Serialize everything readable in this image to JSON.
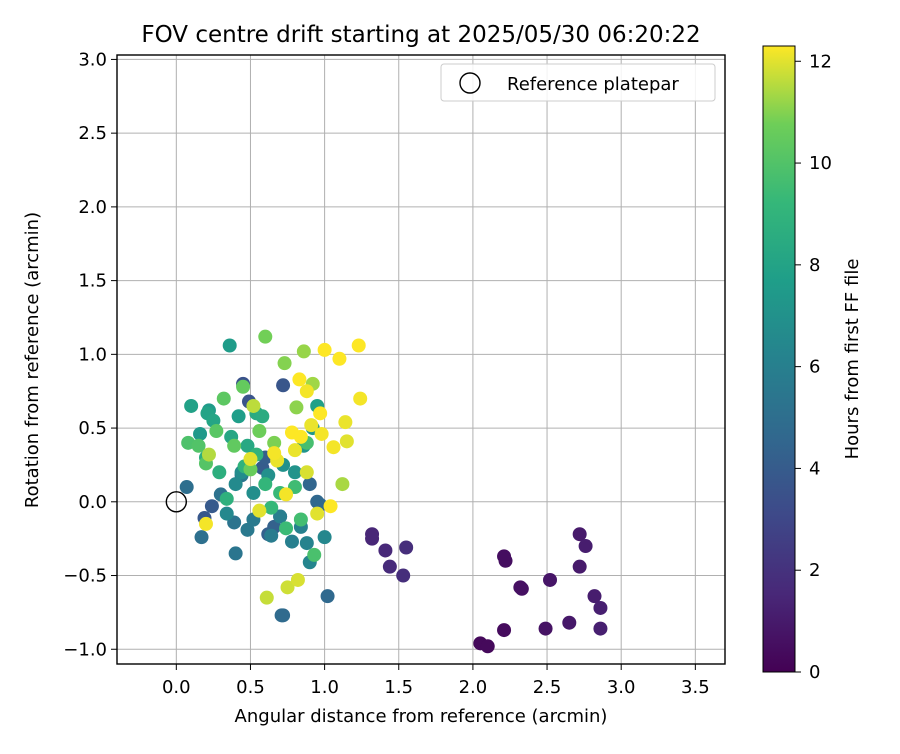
{
  "chart_data": {
    "type": "scatter",
    "title": "FOV centre drift starting at 2025/05/30 06:20:22",
    "xlabel": "Angular distance from reference (arcmin)",
    "ylabel": "Rotation from reference (arcmin)",
    "xlim": [
      -0.4,
      3.7
    ],
    "ylim": [
      -1.1,
      3.03
    ],
    "xticks": [
      "0.0",
      "0.5",
      "1.0",
      "1.5",
      "2.0",
      "2.5",
      "3.0",
      "3.5"
    ],
    "yticks": [
      "−1.0",
      "−0.5",
      "0.0",
      "0.5",
      "1.0",
      "1.5",
      "2.0",
      "2.5",
      "3.0"
    ],
    "grid": true,
    "legend": {
      "position": "top-right",
      "entries": [
        "Reference platepar"
      ]
    },
    "reference_point": {
      "x": 0.0,
      "y": 0.0,
      "label": "Reference platepar"
    },
    "colorbar": {
      "label": "Hours from first FF file",
      "min": 0,
      "max": 12.3,
      "ticks": [
        "0",
        "2",
        "4",
        "6",
        "8",
        "10",
        "12"
      ],
      "colormap": "viridis"
    },
    "points_columns": [
      "x",
      "y",
      "hours"
    ],
    "points": [
      [
        2.05,
        -0.96,
        0.3
      ],
      [
        2.1,
        -0.98,
        0.3
      ],
      [
        2.21,
        -0.87,
        0.4
      ],
      [
        2.21,
        -0.37,
        0.5
      ],
      [
        2.22,
        -0.4,
        0.5
      ],
      [
        2.32,
        -0.58,
        0.6
      ],
      [
        2.33,
        -0.59,
        0.6
      ],
      [
        2.49,
        -0.86,
        0.7
      ],
      [
        2.52,
        -0.53,
        0.8
      ],
      [
        2.65,
        -0.82,
        0.9
      ],
      [
        2.72,
        -0.22,
        1.0
      ],
      [
        2.72,
        -0.44,
        1.0
      ],
      [
        2.76,
        -0.3,
        1.1
      ],
      [
        2.82,
        -0.64,
        1.1
      ],
      [
        2.86,
        -0.72,
        1.2
      ],
      [
        2.86,
        -0.86,
        1.2
      ],
      [
        1.32,
        -0.22,
        1.5
      ],
      [
        1.32,
        -0.25,
        1.5
      ],
      [
        1.41,
        -0.33,
        1.6
      ],
      [
        1.44,
        -0.44,
        1.7
      ],
      [
        1.53,
        -0.5,
        1.8
      ],
      [
        1.55,
        -0.31,
        1.8
      ],
      [
        0.45,
        0.8,
        3.5
      ],
      [
        0.49,
        0.68,
        3.6
      ],
      [
        0.72,
        0.79,
        3.7
      ],
      [
        0.19,
        -0.11,
        3.8
      ],
      [
        0.24,
        -0.03,
        3.9
      ],
      [
        0.58,
        0.23,
        4.0
      ],
      [
        0.6,
        0.3,
        4.1
      ],
      [
        0.62,
        -0.22,
        4.2
      ],
      [
        0.66,
        -0.17,
        4.3
      ],
      [
        0.7,
        -0.1,
        4.4
      ],
      [
        0.9,
        0.12,
        4.5
      ],
      [
        0.95,
        0.0,
        4.6
      ],
      [
        0.97,
        -0.02,
        4.7
      ],
      [
        1.02,
        -0.64,
        4.7
      ],
      [
        0.71,
        -0.77,
        4.8
      ],
      [
        0.72,
        -0.77,
        4.8
      ],
      [
        0.07,
        0.1,
        5.0
      ],
      [
        0.17,
        -0.24,
        5.1
      ],
      [
        0.3,
        0.05,
        5.2
      ],
      [
        0.39,
        -0.14,
        5.3
      ],
      [
        0.4,
        -0.35,
        5.4
      ],
      [
        0.44,
        0.18,
        5.5
      ],
      [
        0.48,
        -0.19,
        5.6
      ],
      [
        0.52,
        -0.12,
        5.7
      ],
      [
        0.64,
        -0.23,
        5.8
      ],
      [
        0.7,
        -0.1,
        5.9
      ],
      [
        0.78,
        -0.27,
        6.0
      ],
      [
        0.84,
        -0.17,
        6.1
      ],
      [
        0.88,
        -0.28,
        6.2
      ],
      [
        0.9,
        -0.41,
        6.3
      ],
      [
        1.0,
        -0.24,
        6.4
      ],
      [
        0.34,
        -0.08,
        6.5
      ],
      [
        0.4,
        0.12,
        6.6
      ],
      [
        0.44,
        0.2,
        6.7
      ],
      [
        0.52,
        0.06,
        6.8
      ],
      [
        0.62,
        0.18,
        6.9
      ],
      [
        0.72,
        0.25,
        7.0
      ],
      [
        0.8,
        0.2,
        7.1
      ],
      [
        0.86,
        0.38,
        7.2
      ],
      [
        0.92,
        0.5,
        7.3
      ],
      [
        0.16,
        0.46,
        7.4
      ],
      [
        0.22,
        0.62,
        7.5
      ],
      [
        0.36,
        1.06,
        7.6
      ],
      [
        0.42,
        0.58,
        7.7
      ],
      [
        0.95,
        0.65,
        7.8
      ],
      [
        0.1,
        0.65,
        7.9
      ],
      [
        0.21,
        0.6,
        8.0
      ],
      [
        0.25,
        0.55,
        8.1
      ],
      [
        0.37,
        0.44,
        8.2
      ],
      [
        0.48,
        0.38,
        8.3
      ],
      [
        0.54,
        0.6,
        8.4
      ],
      [
        0.58,
        0.58,
        8.5
      ],
      [
        0.2,
        0.3,
        8.6
      ],
      [
        0.29,
        0.2,
        8.7
      ],
      [
        0.34,
        0.02,
        8.8
      ],
      [
        0.46,
        0.24,
        8.9
      ],
      [
        0.54,
        0.32,
        9.0
      ],
      [
        0.6,
        0.12,
        9.1
      ],
      [
        0.64,
        -0.04,
        9.2
      ],
      [
        0.7,
        0.06,
        9.3
      ],
      [
        0.74,
        -0.18,
        9.4
      ],
      [
        0.8,
        0.1,
        9.5
      ],
      [
        0.84,
        -0.12,
        9.6
      ],
      [
        0.88,
        0.4,
        9.7
      ],
      [
        0.93,
        -0.36,
        9.8
      ],
      [
        0.08,
        0.4,
        9.9
      ],
      [
        0.15,
        0.38,
        10.0
      ],
      [
        0.2,
        0.26,
        10.1
      ],
      [
        0.27,
        0.48,
        10.2
      ],
      [
        0.32,
        0.7,
        10.3
      ],
      [
        0.39,
        0.38,
        10.4
      ],
      [
        0.45,
        0.78,
        10.5
      ],
      [
        0.5,
        0.22,
        10.6
      ],
      [
        0.56,
        0.48,
        10.7
      ],
      [
        0.6,
        1.12,
        10.8
      ],
      [
        0.66,
        0.4,
        10.9
      ],
      [
        0.73,
        0.94,
        11.0
      ],
      [
        0.81,
        0.64,
        11.1
      ],
      [
        0.86,
        1.02,
        11.2
      ],
      [
        0.92,
        0.8,
        11.3
      ],
      [
        1.12,
        0.12,
        11.4
      ],
      [
        0.22,
        0.32,
        11.5
      ],
      [
        0.52,
        0.65,
        11.6
      ],
      [
        0.61,
        -0.65,
        11.7
      ],
      [
        0.75,
        -0.58,
        11.8
      ],
      [
        0.82,
        -0.53,
        11.9
      ],
      [
        0.56,
        -0.06,
        12.0
      ],
      [
        0.68,
        0.28,
        12.1
      ],
      [
        0.74,
        0.05,
        12.2
      ],
      [
        0.78,
        0.47,
        12.3
      ],
      [
        0.83,
        0.83,
        12.3
      ],
      [
        0.88,
        0.75,
        12.2
      ],
      [
        0.91,
        0.52,
        12.1
      ],
      [
        0.95,
        -0.08,
        12.0
      ],
      [
        0.97,
        0.6,
        12.3
      ],
      [
        0.98,
        0.46,
        12.2
      ],
      [
        1.0,
        1.03,
        12.3
      ],
      [
        1.04,
        -0.03,
        12.3
      ],
      [
        1.06,
        0.37,
        12.2
      ],
      [
        1.1,
        0.97,
        12.3
      ],
      [
        1.14,
        0.54,
        12.1
      ],
      [
        1.15,
        0.41,
        12.0
      ],
      [
        1.23,
        1.06,
        12.3
      ],
      [
        1.24,
        0.7,
        12.2
      ],
      [
        0.2,
        -0.15,
        12.2
      ],
      [
        0.84,
        0.44,
        12.3
      ],
      [
        0.8,
        0.35,
        12.1
      ],
      [
        0.88,
        0.2,
        11.9
      ],
      [
        0.5,
        0.29,
        12.0
      ],
      [
        0.66,
        0.33,
        12.2
      ]
    ]
  }
}
